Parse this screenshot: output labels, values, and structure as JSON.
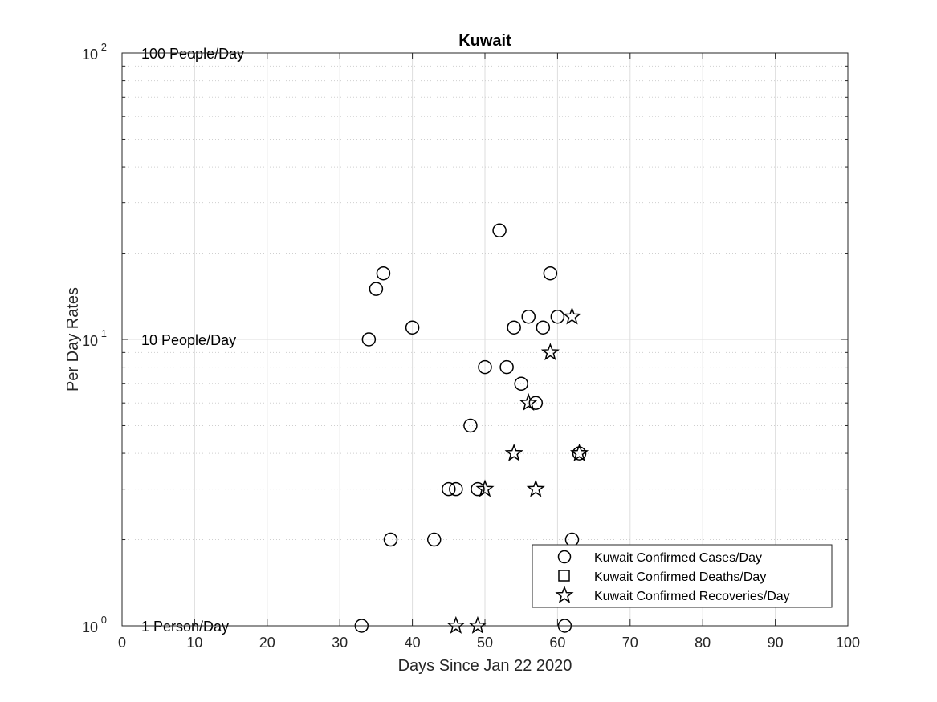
{
  "chart_data": {
    "type": "scatter",
    "title": "Kuwait",
    "xlabel": "Days Since Jan 22 2020",
    "ylabel": "Per Day Rates",
    "xlim": [
      0,
      100
    ],
    "ylim": [
      1,
      100
    ],
    "yscale": "log",
    "grid": true,
    "legend_position": "bottom-right",
    "x_ticks": [
      "0",
      "10",
      "20",
      "30",
      "40",
      "50",
      "60",
      "70",
      "80",
      "90",
      "100"
    ],
    "y_ticks": [
      {
        "base": "10",
        "exp": "0",
        "value": 1
      },
      {
        "base": "10",
        "exp": "1",
        "value": 10
      },
      {
        "base": "10",
        "exp": "2",
        "value": 100
      }
    ],
    "annotations": [
      {
        "text": "100 People/Day",
        "y": 100
      },
      {
        "text": "10 People/Day",
        "y": 10
      },
      {
        "text": "1 Person/Day",
        "y": 1
      }
    ],
    "series": [
      {
        "name": "Kuwait Confirmed Cases/Day",
        "marker": "circle",
        "points": [
          {
            "x": 33,
            "y": 1
          },
          {
            "x": 34,
            "y": 10
          },
          {
            "x": 35,
            "y": 15
          },
          {
            "x": 36,
            "y": 17
          },
          {
            "x": 37,
            "y": 2
          },
          {
            "x": 40,
            "y": 11
          },
          {
            "x": 43,
            "y": 2
          },
          {
            "x": 45,
            "y": 3
          },
          {
            "x": 46,
            "y": 3
          },
          {
            "x": 48,
            "y": 5
          },
          {
            "x": 49,
            "y": 3
          },
          {
            "x": 50,
            "y": 8
          },
          {
            "x": 52,
            "y": 24
          },
          {
            "x": 53,
            "y": 8
          },
          {
            "x": 54,
            "y": 11
          },
          {
            "x": 55,
            "y": 7
          },
          {
            "x": 56,
            "y": 12
          },
          {
            "x": 57,
            "y": 6
          },
          {
            "x": 58,
            "y": 11
          },
          {
            "x": 59,
            "y": 17
          },
          {
            "x": 60,
            "y": 12
          },
          {
            "x": 61,
            "y": 1
          },
          {
            "x": 62,
            "y": 2
          },
          {
            "x": 63,
            "y": 4
          }
        ]
      },
      {
        "name": "Kuwait Confirmed Deaths/Day",
        "marker": "square",
        "points": []
      },
      {
        "name": "Kuwait Confirmed Recoveries/Day",
        "marker": "star",
        "points": [
          {
            "x": 46,
            "y": 1
          },
          {
            "x": 49,
            "y": 1
          },
          {
            "x": 50,
            "y": 3
          },
          {
            "x": 54,
            "y": 4
          },
          {
            "x": 56,
            "y": 6
          },
          {
            "x": 57,
            "y": 3
          },
          {
            "x": 59,
            "y": 9
          },
          {
            "x": 62,
            "y": 12
          },
          {
            "x": 63,
            "y": 4
          }
        ]
      }
    ]
  }
}
